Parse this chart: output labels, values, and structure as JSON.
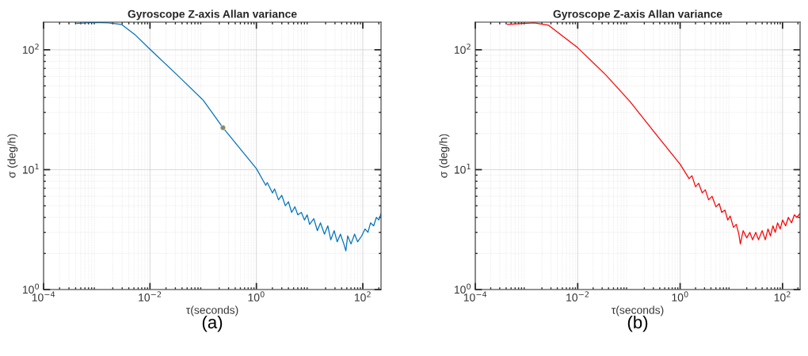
{
  "chart_data": [
    {
      "type": "line",
      "title": "Gyroscope Z-axis Allan variance",
      "xlabel": "τ(seconds)",
      "ylabel": "σ (deg/h)",
      "log": "xy",
      "grid": true,
      "annotations": [
        "(a)"
      ],
      "xlim": [
        0.0001,
        220
      ],
      "ylim": [
        1,
        170
      ],
      "xticks": [
        {
          "value": 0.0001,
          "label": "10$^{−4}$"
        },
        {
          "value": 0.01,
          "label": "10$^{−2}$"
        },
        {
          "value": 1,
          "label": "10$^{0}$"
        },
        {
          "value": 100,
          "label": "10$^{2}$"
        }
      ],
      "yticks": [
        {
          "value": 1,
          "label": "10$^{0}$"
        },
        {
          "value": 10,
          "label": "10$^{1}$"
        },
        {
          "value": 100,
          "label": "10$^{2}$"
        }
      ],
      "series": [
        {
          "color": "#0072bd",
          "x": [
            0.00042,
            0.00083,
            0.00166,
            0.0029,
            0.0052,
            0.01,
            0.032,
            0.1,
            0.235,
            1,
            1.5,
            1.6,
            2.0,
            2.2,
            2.6,
            3.0,
            3.5,
            4.0,
            4.6,
            5.3,
            6.0,
            7.0,
            8.0,
            9.0,
            10,
            12,
            14,
            16,
            19,
            22,
            25,
            29,
            33,
            38,
            44,
            48,
            52,
            60,
            70,
            80,
            95,
            110,
            125,
            140,
            160,
            180,
            200,
            220
          ],
          "values": [
            166,
            169,
            168,
            163,
            134,
            101,
            62,
            38,
            22.4,
            10.2,
            7.4,
            7.8,
            6.4,
            6.9,
            5.6,
            6.1,
            5.0,
            5.4,
            4.4,
            4.9,
            4.2,
            4.4,
            3.8,
            4.2,
            3.5,
            3.9,
            3.1,
            3.6,
            2.9,
            3.4,
            2.6,
            3.1,
            2.5,
            2.9,
            2.4,
            2.1,
            2.8,
            2.4,
            2.9,
            2.5,
            2.8,
            3.2,
            3.0,
            3.6,
            3.4,
            4.0,
            3.8,
            4.3
          ]
        },
        {
          "type": "scatter",
          "color": "#8c8a5c",
          "marker": "circle",
          "x": [
            0.235
          ],
          "values": [
            22.4
          ]
        }
      ]
    },
    {
      "type": "line",
      "title": "Gyroscope Z-axis Allan variance",
      "xlabel": "τ(seconds)",
      "ylabel": "σ (deg/h)",
      "log": "xy",
      "grid": true,
      "annotations": [
        "(b)"
      ],
      "xlim": [
        0.0001,
        220
      ],
      "ylim": [
        1,
        170
      ],
      "xticks": [
        {
          "value": 0.0001,
          "label": "10$^{−4}$"
        },
        {
          "value": 0.01,
          "label": "10$^{−2}$"
        },
        {
          "value": 1,
          "label": "10$^{0}$"
        },
        {
          "value": 100,
          "label": "10$^{2}$"
        }
      ],
      "yticks": [
        {
          "value": 1,
          "label": "10$^{0}$"
        },
        {
          "value": 10,
          "label": "10$^{1}$"
        },
        {
          "value": 100,
          "label": "10$^{2}$"
        }
      ],
      "series": [
        {
          "color": "#ff0000",
          "x": [
            0.00042,
            0.0014,
            0.0027,
            0.01,
            0.035,
            0.105,
            0.33,
            1,
            1.5,
            1.7,
            2.0,
            2.3,
            2.7,
            3.1,
            3.6,
            4.2,
            5.0,
            5.8,
            6.5,
            7.5,
            8.5,
            9.5,
            11,
            12.5,
            14,
            15,
            17,
            20,
            23,
            26,
            30,
            34,
            40,
            46,
            52,
            58,
            65,
            72,
            80,
            90,
            100,
            115,
            130,
            150,
            170,
            190,
            220
          ],
          "values": [
            163,
            168,
            160,
            104,
            62,
            37,
            20,
            11.1,
            8.4,
            8.9,
            7.2,
            7.7,
            6.4,
            6.8,
            5.6,
            6.0,
            4.9,
            5.2,
            4.4,
            4.6,
            3.8,
            4.1,
            3.3,
            3.5,
            2.9,
            2.4,
            3.1,
            2.7,
            3.0,
            2.6,
            3.0,
            2.6,
            3.1,
            2.6,
            3.2,
            2.8,
            3.4,
            3.0,
            3.6,
            3.2,
            3.8,
            3.4,
            4.0,
            3.6,
            4.2,
            4.0,
            4.3
          ]
        }
      ]
    }
  ]
}
